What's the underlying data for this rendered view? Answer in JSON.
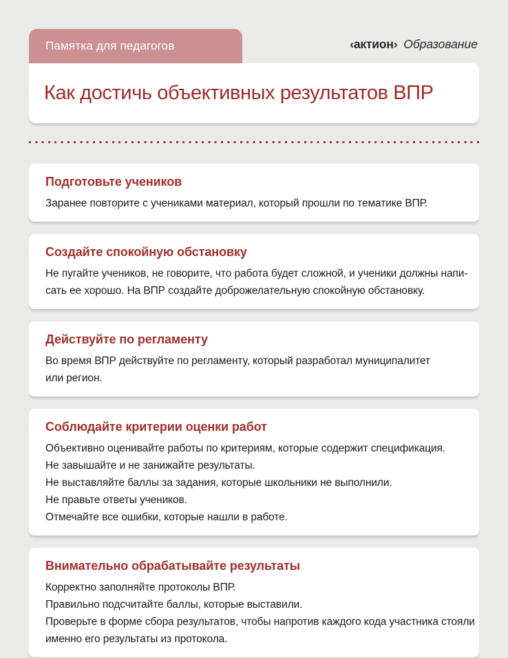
{
  "page": {
    "badge_label": "Памятка для педагогов",
    "logo": {
      "brand": "‹актион›",
      "suffix": "Образование"
    },
    "title": "Как достичь объективных результатов ВПР"
  },
  "colors": {
    "background": "#eaeae8",
    "badge_bg": "#cc9092",
    "accent_red": "#9e2b27",
    "heading_red": "#a2302c",
    "body_text": "#1b1b1b",
    "dots": "#a13535",
    "card_bg": "#ffffff"
  },
  "sections": [
    {
      "title": "Подготовьте учеников",
      "lines": [
        "Заранее повторите с учениками материал, который прошли по тематике ВПР."
      ]
    },
    {
      "title": "Создайте спокойную обстановку",
      "lines": [
        "Не пугайте учеников, не говорите, что работа будет сложной, и ученики должны напи-",
        "сать ее хорошо. На ВПР создайте доброжелательную спокойную обстановку."
      ]
    },
    {
      "title": "Действуйте по регламенту",
      "lines": [
        "Во время ВПР действуйте по регламенту, который разработал муниципалитет",
        "или регион."
      ]
    },
    {
      "title": "Соблюдайте критерии оценки работ",
      "lines": [
        "Объективно оценивайте работы по критериям, которые содержит спецификация.",
        "Не завышайте и не занижайте результаты.",
        "Не выставляйте баллы за задания, которые школьники не выполнили.",
        "Не правьте ответы учеников.",
        "Отмечайте все ошибки, которые нашли в работе."
      ]
    },
    {
      "title": "Внимательно обрабатывайте результаты",
      "lines": [
        "Корректно заполняйте протоколы ВПР.",
        "Правильно подсчитайте баллы, которые выставили.",
        "Проверьте в форме сбора результатов, чтобы напротив каждого кода участника стояли",
        "именно его результаты из протокола."
      ]
    }
  ]
}
